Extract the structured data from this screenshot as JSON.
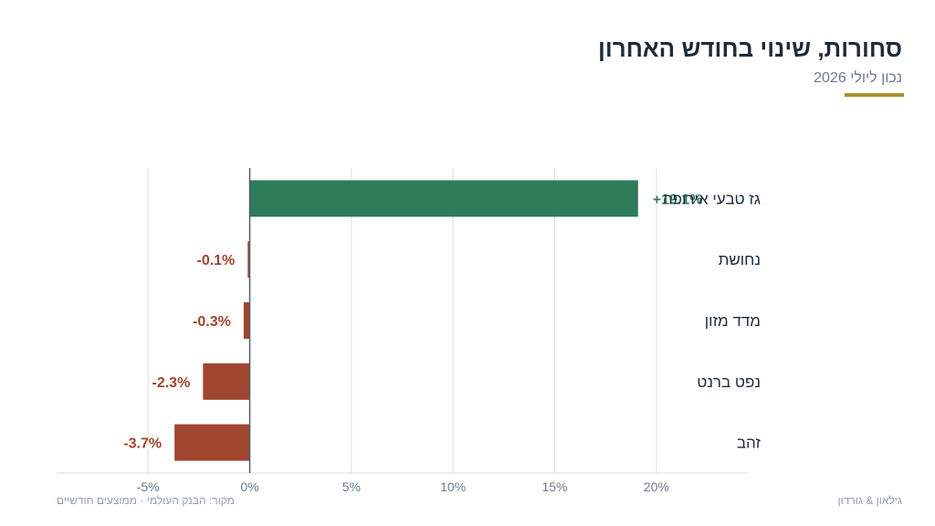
{
  "header": {
    "title": "סחורות, שינוי בחודש האחרון",
    "subtitle": "נכון ליולי 2026"
  },
  "footer": {
    "source": "מקור: הבנק העולמי · ממוצעים חודשיים",
    "brand": "גילאון & גורדון"
  },
  "colors": {
    "positive": "#2e7b5a",
    "negative": "#a0452e",
    "accent": "#a8902a",
    "grid": "#d9dde2",
    "zero_line": "#4a5d70",
    "axis_text": "#6b7a8c",
    "category_text": "#1e2b3a"
  },
  "chart_data": {
    "type": "bar",
    "orientation": "horizontal",
    "categories": [
      "גז טבעי אירופה",
      "נחושת",
      "מדד מזון",
      "נפט ברנט",
      "זהב"
    ],
    "values": [
      19.1,
      -0.1,
      -0.3,
      -2.3,
      -3.7
    ],
    "value_labels": [
      "+19.1%",
      "-0.1%",
      "-0.3%",
      "-2.3%",
      "-3.7%"
    ],
    "x_ticks": [
      -5,
      0,
      5,
      10,
      15,
      20
    ],
    "x_tick_labels": [
      "-5%",
      "0%",
      "5%",
      "10%",
      "15%",
      "20%"
    ],
    "xlim": [
      -9.5,
      24.5
    ],
    "grid": true,
    "category_labels_side": "right"
  }
}
